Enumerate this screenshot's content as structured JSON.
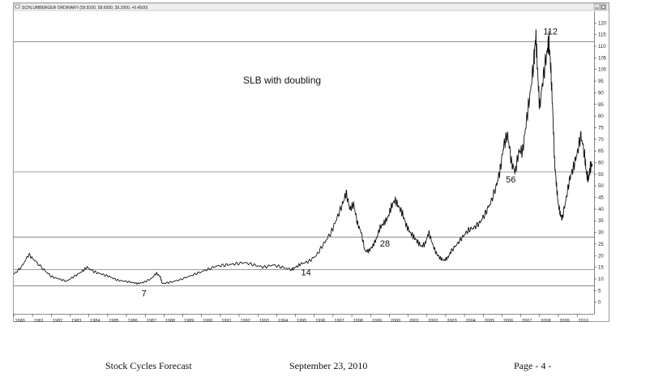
{
  "window": {
    "title": "SCHLUMBERGER ORDINARY (59.8100, 58.6000, 39.2900, +0.4500)"
  },
  "footer": {
    "left": "Stock Cycles Forecast",
    "center": "September 23, 2010",
    "right": "Page - 4 -"
  },
  "chart_data": {
    "type": "line",
    "title": "",
    "subtitle": "SLB with doubling",
    "xlabel": "",
    "ylabel": "",
    "ylim": [
      -5,
      125
    ],
    "xlim": [
      1980,
      2010.9
    ],
    "y_ticks": [
      0,
      5,
      10,
      15,
      20,
      25,
      30,
      35,
      40,
      45,
      50,
      55,
      60,
      65,
      70,
      75,
      80,
      85,
      90,
      95,
      100,
      105,
      110,
      115,
      120
    ],
    "x_tick_labels": [
      "1980",
      "1981",
      "1982",
      "1983",
      "1984",
      "1985",
      "1986",
      "1987",
      "1988",
      "1989",
      "1990",
      "1991",
      "1992",
      "1993",
      "1994",
      "1995",
      "1996",
      "1997",
      "1998",
      "1999",
      "2000",
      "2001",
      "2002",
      "2003",
      "2004",
      "2005",
      "2006",
      "2007",
      "2008",
      "2009",
      "2010"
    ],
    "reference_lines": [
      {
        "value": 7,
        "label": "7"
      },
      {
        "value": 14,
        "label": "14"
      },
      {
        "value": 28,
        "label": "28"
      },
      {
        "value": 56,
        "label": "56"
      },
      {
        "value": 112,
        "label": "112"
      }
    ],
    "annotations": [
      {
        "text": "7",
        "x": 1986.8,
        "y": 2.5
      },
      {
        "text": "14",
        "x": 1995.3,
        "y": 11.5
      },
      {
        "text": "28",
        "x": 1999.5,
        "y": 24
      },
      {
        "text": "56",
        "x": 2006.2,
        "y": 51.5
      },
      {
        "text": "112",
        "x": 2008.2,
        "y": 115
      }
    ],
    "grid": false,
    "series": [
      {
        "values": [
          [
            1980.0,
            12
          ],
          [
            1980.4,
            15
          ],
          [
            1980.8,
            20.5
          ],
          [
            1981.1,
            18
          ],
          [
            1981.6,
            14
          ],
          [
            1982.0,
            11
          ],
          [
            1982.4,
            10
          ],
          [
            1982.8,
            9
          ],
          [
            1983.2,
            11
          ],
          [
            1983.6,
            13
          ],
          [
            1983.9,
            15
          ],
          [
            1984.3,
            13
          ],
          [
            1984.7,
            12
          ],
          [
            1985.1,
            11
          ],
          [
            1985.5,
            9.5
          ],
          [
            1985.9,
            9
          ],
          [
            1986.3,
            8.5
          ],
          [
            1986.6,
            8
          ],
          [
            1986.9,
            8.5
          ],
          [
            1987.3,
            10
          ],
          [
            1987.6,
            12.5
          ],
          [
            1987.8,
            11
          ],
          [
            1987.9,
            8
          ],
          [
            1988.3,
            8.5
          ],
          [
            1988.8,
            9.5
          ],
          [
            1989.3,
            11
          ],
          [
            1989.8,
            12.5
          ],
          [
            1990.3,
            14
          ],
          [
            1990.8,
            15.5
          ],
          [
            1991.3,
            16
          ],
          [
            1991.8,
            16.5
          ],
          [
            1992.3,
            17
          ],
          [
            1992.8,
            16
          ],
          [
            1993.3,
            15
          ],
          [
            1993.8,
            16
          ],
          [
            1994.3,
            15
          ],
          [
            1994.8,
            14
          ],
          [
            1995.0,
            15
          ],
          [
            1995.3,
            16.5
          ],
          [
            1995.7,
            17.5
          ],
          [
            1996.1,
            20
          ],
          [
            1996.5,
            25
          ],
          [
            1996.9,
            30
          ],
          [
            1997.2,
            36
          ],
          [
            1997.5,
            42
          ],
          [
            1997.7,
            47
          ],
          [
            1997.9,
            40
          ],
          [
            1998.1,
            42
          ],
          [
            1998.3,
            34
          ],
          [
            1998.5,
            30
          ],
          [
            1998.7,
            22
          ],
          [
            1998.9,
            22
          ],
          [
            1999.1,
            24
          ],
          [
            1999.3,
            27
          ],
          [
            1999.5,
            32
          ],
          [
            1999.7,
            34
          ],
          [
            1999.9,
            36
          ],
          [
            2000.1,
            41
          ],
          [
            2000.3,
            44
          ],
          [
            2000.5,
            41
          ],
          [
            2000.7,
            38
          ],
          [
            2000.9,
            33
          ],
          [
            2001.1,
            30
          ],
          [
            2001.3,
            28
          ],
          [
            2001.5,
            26
          ],
          [
            2001.7,
            24
          ],
          [
            2001.9,
            25
          ],
          [
            2002.1,
            30
          ],
          [
            2002.3,
            25
          ],
          [
            2002.5,
            21
          ],
          [
            2002.7,
            19
          ],
          [
            2002.9,
            18
          ],
          [
            2003.1,
            19
          ],
          [
            2003.3,
            22
          ],
          [
            2003.6,
            25
          ],
          [
            2003.9,
            28
          ],
          [
            2004.2,
            31
          ],
          [
            2004.5,
            32
          ],
          [
            2004.8,
            34
          ],
          [
            2005.1,
            38
          ],
          [
            2005.4,
            43
          ],
          [
            2005.7,
            50
          ],
          [
            2005.9,
            57
          ],
          [
            2006.1,
            68
          ],
          [
            2006.3,
            72
          ],
          [
            2006.5,
            60
          ],
          [
            2006.7,
            56
          ],
          [
            2006.9,
            65
          ],
          [
            2007.1,
            65
          ],
          [
            2007.3,
            78
          ],
          [
            2007.5,
            90
          ],
          [
            2007.7,
            104
          ],
          [
            2007.8,
            115
          ],
          [
            2007.9,
            98
          ],
          [
            2008.0,
            84
          ],
          [
            2008.2,
            97
          ],
          [
            2008.4,
            108
          ],
          [
            2008.5,
            112
          ],
          [
            2008.6,
            100
          ],
          [
            2008.7,
            82
          ],
          [
            2008.8,
            60
          ],
          [
            2008.9,
            50
          ],
          [
            2009.0,
            42
          ],
          [
            2009.1,
            38
          ],
          [
            2009.2,
            36
          ],
          [
            2009.4,
            44
          ],
          [
            2009.6,
            53
          ],
          [
            2009.8,
            58
          ],
          [
            2010.0,
            64
          ],
          [
            2010.2,
            72
          ],
          [
            2010.4,
            63
          ],
          [
            2010.5,
            55
          ],
          [
            2010.6,
            53
          ],
          [
            2010.7,
            58
          ],
          [
            2010.8,
            59.5
          ]
        ]
      }
    ]
  }
}
